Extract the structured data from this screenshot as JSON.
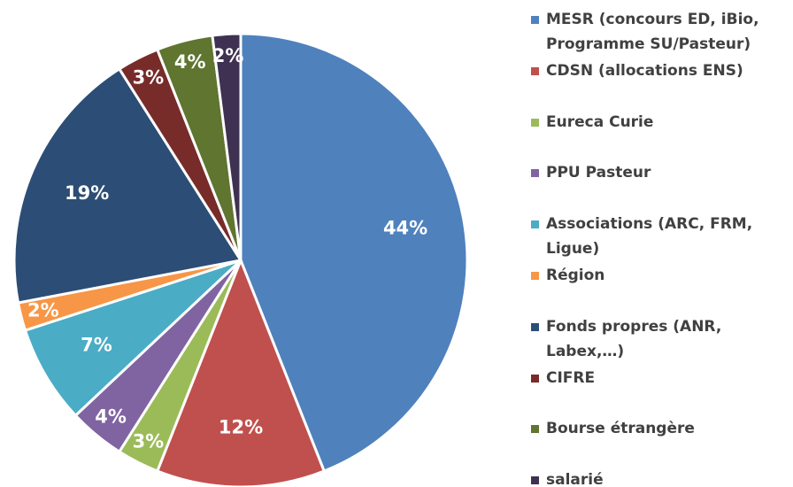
{
  "chart_data": {
    "type": "pie",
    "categories": [
      "MESR (concours ED, iBio, Programme SU/Pasteur)",
      "CDSN (allocations ENS)",
      "Eureca Curie",
      "PPU Pasteur",
      "Associations (ARC, FRM, Ligue)",
      "Région",
      "Fonds propres (ANR, Labex,…)",
      "CIFRE",
      "Bourse étrangère",
      "salarié"
    ],
    "values": [
      44,
      12,
      3,
      4,
      7,
      2,
      19,
      3,
      4,
      2
    ],
    "value_labels": [
      "44%",
      "12%",
      "3%",
      "4%",
      "7%",
      "2%",
      "19%",
      "3%",
      "4%",
      "2%"
    ],
    "colors": [
      "#4f81bd",
      "#c0504d",
      "#9bbb59",
      "#8064a2",
      "#4bacc6",
      "#f79646",
      "#2c4d75",
      "#772c2a",
      "#5f7530",
      "#3f3151"
    ],
    "legend": "right"
  }
}
